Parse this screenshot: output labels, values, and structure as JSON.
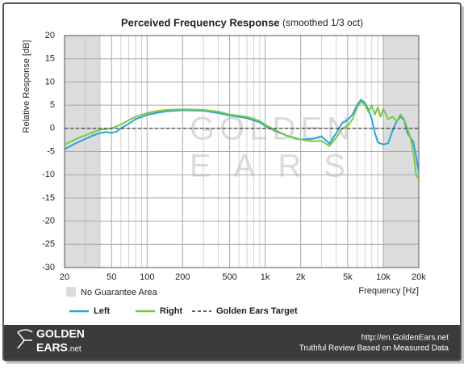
{
  "chart_data": {
    "type": "line",
    "title": "Perceived Frequency Response",
    "subtitle": "(smoothed 1/3 oct)",
    "y_label": "Relative Response [dB]",
    "x_label": "Frequency [Hz]",
    "log_x": true,
    "grid": true,
    "xlim": [
      20,
      20000
    ],
    "ylim": [
      -30,
      20
    ],
    "xticks": [
      20,
      50,
      100,
      200,
      500,
      {
        "value": 1000,
        "label": "1k"
      },
      {
        "value": 2000,
        "label": "2k"
      },
      {
        "value": 5000,
        "label": "5k"
      },
      {
        "value": 10000,
        "label": "10k"
      },
      {
        "value": 20000,
        "label": "20k"
      }
    ],
    "x_minor_grid": [
      30,
      40,
      60,
      70,
      80,
      90,
      300,
      400,
      600,
      700,
      800,
      900,
      3000,
      4000,
      6000,
      7000,
      8000,
      9000
    ],
    "yticks": [
      20,
      15,
      10,
      5,
      0,
      -5,
      -10,
      -15,
      -20,
      -25,
      -30
    ],
    "shaded_regions": [
      [
        20,
        40
      ],
      [
        10000,
        20000
      ]
    ],
    "shaded_label": "No Guarantee Area",
    "shaded_color": "#dcdcdc",
    "series": [
      {
        "name": "Left",
        "color": "#29a3dc",
        "dash": false,
        "x": [
          20,
          25,
          30,
          35,
          40,
          45,
          50,
          55,
          60,
          70,
          80,
          100,
          125,
          150,
          200,
          300,
          400,
          500,
          700,
          900,
          1000,
          1200,
          1500,
          1800,
          2000,
          2500,
          3000,
          3500,
          4000,
          4500,
          5000,
          5500,
          6000,
          6500,
          7000,
          7500,
          8000,
          8500,
          9000,
          10000,
          11000,
          12000,
          13000,
          14000,
          15000,
          16000,
          17000,
          18000,
          19000,
          20000
        ],
        "values": [
          -4.5,
          -3.2,
          -2.3,
          -1.5,
          -1,
          -0.8,
          -1,
          -0.7,
          0,
          1,
          2,
          2.9,
          3.4,
          3.7,
          3.9,
          3.8,
          3.3,
          2.8,
          2.2,
          1.3,
          0.5,
          -0.5,
          -1.5,
          -2.2,
          -2.4,
          -2.3,
          -1.7,
          -3.3,
          -1,
          1.2,
          1.8,
          3,
          5,
          6.2,
          5.5,
          4,
          2,
          -1,
          -3,
          -3.5,
          -3.2,
          -0.5,
          1.5,
          2.5,
          1.8,
          -1,
          -2,
          -3,
          -6,
          -9.5
        ]
      },
      {
        "name": "Right",
        "color": "#7dc843",
        "dash": false,
        "x": [
          20,
          25,
          30,
          35,
          40,
          50,
          60,
          70,
          80,
          100,
          125,
          150,
          200,
          300,
          400,
          500,
          700,
          900,
          1000,
          1200,
          1500,
          2000,
          2500,
          3000,
          3500,
          4000,
          4500,
          5000,
          5500,
          6000,
          6500,
          7000,
          7500,
          8000,
          8500,
          9000,
          9500,
          10000,
          11000,
          12000,
          13000,
          14000,
          15000,
          16000,
          17000,
          18000,
          19000,
          20000
        ],
        "values": [
          -3.5,
          -2.3,
          -1.5,
          -0.8,
          -0.3,
          0,
          0.8,
          1.8,
          2.5,
          3.3,
          3.8,
          4,
          4.1,
          4,
          3.6,
          3,
          2.5,
          1.6,
          0.8,
          -0.3,
          -1.5,
          -2.4,
          -2.8,
          -2.7,
          -3.8,
          -2,
          0,
          0.5,
          2,
          4.5,
          5.8,
          5,
          3.5,
          5,
          3,
          4.5,
          2.5,
          4.2,
          2,
          2.5,
          1.5,
          3,
          2,
          0,
          -2,
          -5,
          -10,
          -11
        ]
      },
      {
        "name": "Golden Ears Target",
        "color": "#333333",
        "dash": true,
        "x": [
          20,
          20000
        ],
        "values": [
          0,
          0
        ]
      }
    ],
    "watermark": [
      "GOLDEN",
      "EARS"
    ],
    "footer": {
      "logo_top": "GOLDEN",
      "logo_bottom": "EARS",
      "logo_suffix": ".net",
      "url": "http://en.GoldenEars.net",
      "tagline": "Truthful Review Based on Measured Data"
    }
  }
}
